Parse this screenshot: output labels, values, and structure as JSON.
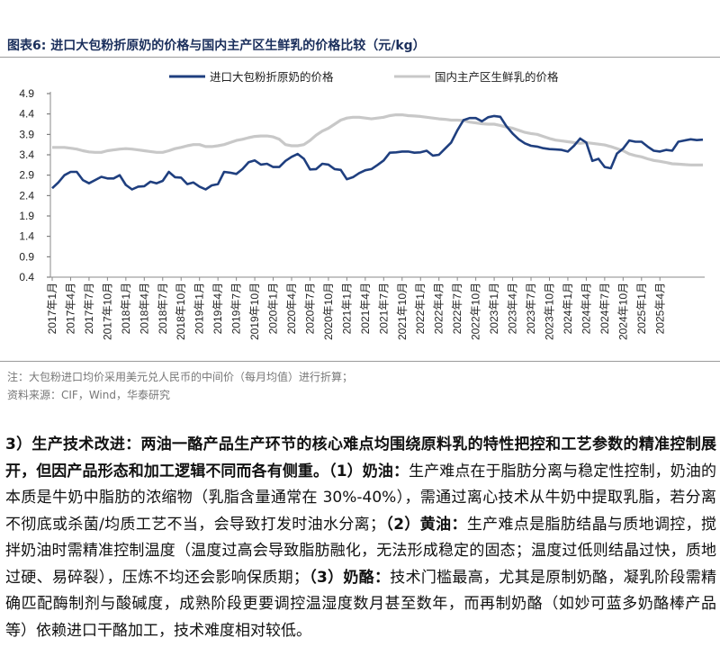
{
  "figure": {
    "title": "图表6:  进口大包粉折原奶的价格与国内主产区生鲜乳的价格比较（元/kg）"
  },
  "chart_data": {
    "type": "line",
    "title": "进口大包粉折原奶的价格与国内主产区生鲜乳的价格比较（元/kg）",
    "ylim": [
      0.4,
      4.9
    ],
    "yticks": [
      "4.9",
      "4.4",
      "3.9",
      "3.4",
      "2.9",
      "2.4",
      "1.9",
      "1.4",
      "0.9",
      "0.4"
    ],
    "ytick_values": [
      4.9,
      4.4,
      3.9,
      3.4,
      2.9,
      2.4,
      1.9,
      1.4,
      0.9,
      0.4
    ],
    "xtick_labels": [
      "2017年1月",
      "2017年4月",
      "2017年7月",
      "2017年10月",
      "2018年1月",
      "2018年4月",
      "2018年7月",
      "2018年10月",
      "2019年1月",
      "2019年4月",
      "2019年7月",
      "2019年10月",
      "2020年1月",
      "2020年4月",
      "2020年7月",
      "2020年10月",
      "2021年1月",
      "2021年4月",
      "2021年7月",
      "2021年10月",
      "2022年1月",
      "2022年4月",
      "2022年7月",
      "2022年10月",
      "2023年1月",
      "2023年4月",
      "2023年7月",
      "2023年10月",
      "2024年1月",
      "2024年4月",
      "2024年7月",
      "2024年10月",
      "2025年1月",
      "2025年4月"
    ],
    "series": [
      {
        "name": "进口大包粉折原奶的价格",
        "color": "#1f3f7f",
        "values": [
          2.58,
          2.72,
          2.9,
          2.98,
          2.98,
          2.78,
          2.7,
          2.78,
          2.86,
          2.82,
          2.82,
          2.9,
          2.66,
          2.55,
          2.62,
          2.63,
          2.74,
          2.7,
          2.76,
          2.98,
          2.85,
          2.84,
          2.68,
          2.72,
          2.62,
          2.55,
          2.65,
          2.68,
          2.98,
          2.96,
          2.93,
          3.05,
          3.22,
          3.26,
          3.16,
          3.18,
          3.1,
          3.1,
          3.25,
          3.35,
          3.42,
          3.3,
          3.04,
          3.05,
          3.18,
          3.16,
          3.05,
          3.03,
          2.8,
          2.85,
          2.95,
          3.02,
          3.05,
          3.15,
          3.26,
          3.45,
          3.46,
          3.48,
          3.48,
          3.45,
          3.46,
          3.5,
          3.38,
          3.4,
          3.55,
          3.7,
          4.0,
          4.25,
          4.3,
          4.3,
          4.22,
          4.32,
          4.35,
          4.33,
          4.1,
          3.92,
          3.78,
          3.68,
          3.62,
          3.6,
          3.56,
          3.54,
          3.53,
          3.52,
          3.48,
          3.62,
          3.8,
          3.7,
          3.25,
          3.3,
          3.1,
          3.07,
          3.43,
          3.55,
          3.75,
          3.72,
          3.72,
          3.6,
          3.5,
          3.48,
          3.52,
          3.5,
          3.72,
          3.75,
          3.78,
          3.76,
          3.77
        ]
      },
      {
        "name": "国内主产区生鲜乳的价格",
        "color": "#c8c8c8",
        "values": [
          3.58,
          3.58,
          3.58,
          3.56,
          3.54,
          3.5,
          3.47,
          3.46,
          3.46,
          3.5,
          3.52,
          3.54,
          3.55,
          3.54,
          3.52,
          3.5,
          3.48,
          3.46,
          3.46,
          3.5,
          3.55,
          3.58,
          3.62,
          3.65,
          3.65,
          3.6,
          3.6,
          3.62,
          3.65,
          3.7,
          3.75,
          3.78,
          3.82,
          3.85,
          3.86,
          3.86,
          3.84,
          3.78,
          3.65,
          3.62,
          3.62,
          3.65,
          3.75,
          3.88,
          3.98,
          4.05,
          4.15,
          4.25,
          4.3,
          4.32,
          4.32,
          4.3,
          4.28,
          4.3,
          4.32,
          4.36,
          4.38,
          4.38,
          4.36,
          4.35,
          4.34,
          4.32,
          4.3,
          4.28,
          4.27,
          4.25,
          4.25,
          4.24,
          4.2,
          4.18,
          4.16,
          4.15,
          4.15,
          4.12,
          4.08,
          4.05,
          4.0,
          3.95,
          3.92,
          3.9,
          3.85,
          3.8,
          3.76,
          3.74,
          3.72,
          3.7,
          3.68,
          3.7,
          3.68,
          3.66,
          3.64,
          3.6,
          3.55,
          3.5,
          3.42,
          3.38,
          3.35,
          3.3,
          3.26,
          3.24,
          3.21,
          3.18,
          3.17,
          3.16,
          3.15,
          3.15,
          3.15
        ]
      }
    ],
    "legend": "top-center"
  },
  "notes": {
    "note": "注：大包粉进口均价采用美元兑人民币的中间价（每月均值）进行折算；",
    "source": "资料来源：CIF，Wind，华泰研究"
  },
  "body": {
    "heading": "3）生产技术改进：两油一酪产品生产环节的核心难点均围绕原料乳的特性把控和工艺参数的精准控制展开，但因产品形态和加工逻辑不同而各有侧重。",
    "p1_label": "（1）奶油：",
    "p1_text": "生产难点在于脂肪分离与稳定性控制，奶油的本质是牛奶中脂肪的浓缩物（乳脂含量通常在 30%-40%），需通过离心技术从牛奶中提取乳脂，若分离不彻底或杀菌/均质工艺不当，会导致打发时油水分离；",
    "p2_label": "（2）黄油：",
    "p2_text": "生产难点是脂肪结晶与质地调控，搅拌奶油时需精准控制温度（温度过高会导致脂肪融化，无法形成稳定的固态；温度过低则结晶过快，质地过硬、易碎裂），压炼不均还会影响保质期；",
    "p3_label": "（3）奶酪：",
    "p3_text": "技术门槛最高，尤其是原制奶酪，凝乳阶段需精确匹配酶制剂与酸碱度，成熟阶段更要调控温湿度数月甚至数年，而再制奶酪（如妙可蓝多奶酪棒产品等）依赖进口干酪加工，技术难度相对较低。"
  }
}
